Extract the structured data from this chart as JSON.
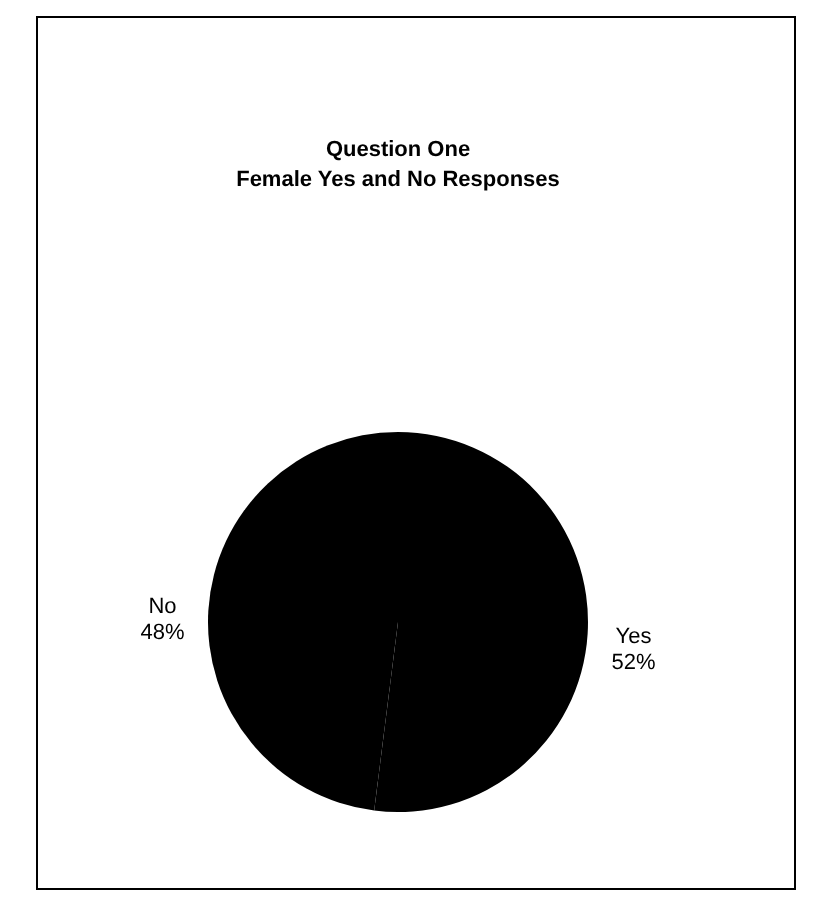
{
  "chart_data": {
    "type": "pie",
    "title": "Question One\nFemale Yes and No Responses",
    "categories": [
      "Yes",
      "No"
    ],
    "values": [
      52,
      48
    ],
    "colors": [
      "#000000",
      "#000000"
    ],
    "value_labels": [
      "52%",
      "48%"
    ]
  }
}
